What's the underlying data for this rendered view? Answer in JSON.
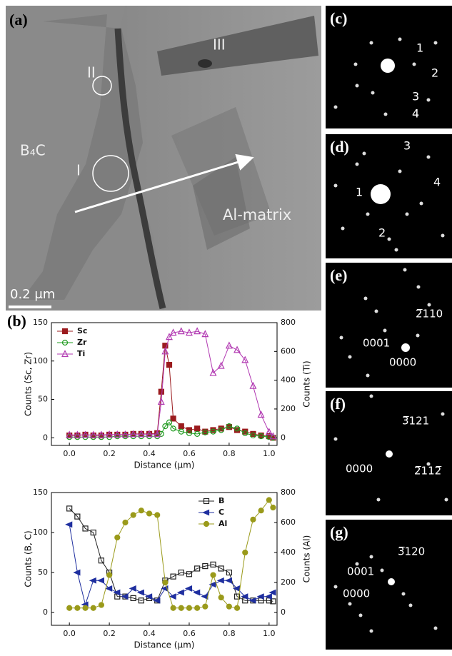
{
  "panel_a": {
    "label": "(a)",
    "regions": [
      "I",
      "II",
      "III"
    ],
    "phase_left": "B₄C",
    "phase_right": "Al-matrix",
    "scale_bar": "0.2 μm"
  },
  "panel_b_label": "(b)",
  "diffraction_panels": [
    {
      "label": "(c)",
      "spots": [
        "1",
        "2",
        "3",
        "4"
      ]
    },
    {
      "label": "(d)",
      "spots": [
        "3",
        "1",
        "4",
        "2"
      ]
    },
    {
      "label": "(e)",
      "spots": [
        "2̅110",
        "0001",
        "0000"
      ]
    },
    {
      "label": "(f)",
      "spots": [
        "3̅121",
        "0000",
        "2̅112̅"
      ]
    },
    {
      "label": "(g)",
      "spots": [
        "3̅120",
        "0001",
        "0000"
      ]
    }
  ],
  "chart_data": [
    {
      "type": "line",
      "x_label": "Distance (μm)",
      "y_label": "Counts (Sc, Zr)",
      "y2_label": "Counts (Ti)",
      "x": [
        0,
        0.04,
        0.08,
        0.12,
        0.16,
        0.2,
        0.24,
        0.28,
        0.32,
        0.36,
        0.4,
        0.44,
        0.46,
        0.48,
        0.5,
        0.52,
        0.56,
        0.6,
        0.64,
        0.68,
        0.72,
        0.76,
        0.8,
        0.84,
        0.88,
        0.92,
        0.96,
        1.0,
        1.02
      ],
      "xlim": [
        -0.09,
        1.04
      ],
      "xticks": [
        {
          "value": 0,
          "label": "0.0"
        },
        0.2,
        0.4,
        0.6,
        0.8,
        {
          "value": 1,
          "label": "1.0"
        }
      ],
      "ylim": [
        -10,
        150
      ],
      "yticks": [
        0,
        50,
        100,
        150
      ],
      "y2lim": [
        -53.3,
        800
      ],
      "y2ticks": [
        0,
        200,
        400,
        600,
        800
      ],
      "legend": "upper left",
      "series": [
        {
          "name": "Sc",
          "color": "#9b1b1e",
          "marker": "square",
          "filled": true,
          "values": [
            3,
            3,
            4,
            3,
            3,
            4,
            4,
            4,
            5,
            5,
            5,
            6,
            60,
            120,
            95,
            25,
            15,
            10,
            12,
            8,
            10,
            12,
            14,
            10,
            8,
            5,
            3,
            2,
            0
          ]
        },
        {
          "name": "Zr",
          "color": "#1f9b1f",
          "marker": "circle",
          "filled": false,
          "values": [
            1,
            1,
            1,
            1,
            1,
            1,
            2,
            2,
            2,
            2,
            2,
            2,
            5,
            15,
            20,
            12,
            8,
            6,
            5,
            7,
            8,
            10,
            15,
            12,
            6,
            3,
            2,
            1,
            0
          ]
        },
        {
          "name": "Ti",
          "color": "#b23ab2",
          "marker": "triangle",
          "filled": false,
          "axis": "y2",
          "values": [
            20,
            20,
            20,
            20,
            20,
            22,
            22,
            22,
            25,
            25,
            25,
            25,
            250,
            600,
            700,
            730,
            740,
            730,
            740,
            720,
            450,
            500,
            640,
            610,
            540,
            360,
            160,
            40,
            10
          ]
        }
      ]
    },
    {
      "type": "line",
      "x_label": "Distance (μm)",
      "y_label": "Counts (B, C)",
      "y2_label": "Counts (Al)",
      "x": [
        0,
        0.04,
        0.08,
        0.12,
        0.16,
        0.2,
        0.24,
        0.28,
        0.32,
        0.36,
        0.4,
        0.44,
        0.48,
        0.52,
        0.56,
        0.6,
        0.64,
        0.68,
        0.72,
        0.76,
        0.8,
        0.84,
        0.88,
        0.92,
        0.96,
        1.0,
        1.02
      ],
      "xlim": [
        -0.09,
        1.04
      ],
      "xticks": [
        {
          "value": 0,
          "label": "0.0"
        },
        0.2,
        0.4,
        0.6,
        0.8,
        {
          "value": 1,
          "label": "1.0"
        }
      ],
      "ylim": [
        -16,
        150
      ],
      "yticks": [
        0,
        50,
        100,
        150
      ],
      "y2lim": [
        -85.3,
        800
      ],
      "y2ticks": [
        0,
        200,
        400,
        600,
        800
      ],
      "legend": "upper right",
      "series": [
        {
          "name": "B",
          "color": "#222222",
          "marker": "square",
          "filled": false,
          "values": [
            130,
            120,
            105,
            100,
            65,
            50,
            20,
            20,
            18,
            15,
            18,
            15,
            40,
            45,
            50,
            48,
            55,
            58,
            60,
            55,
            50,
            20,
            15,
            15,
            15,
            15,
            14
          ]
        },
        {
          "name": "C",
          "color": "#1f2f9f",
          "marker": "triangle-left",
          "filled": true,
          "values": [
            110,
            50,
            10,
            40,
            40,
            30,
            25,
            20,
            30,
            25,
            20,
            15,
            30,
            20,
            25,
            30,
            25,
            20,
            35,
            40,
            40,
            30,
            20,
            15,
            20,
            20,
            25
          ]
        },
        {
          "name": "Al",
          "color": "#9a9a1a",
          "marker": "circle",
          "filled": true,
          "axis": "y2",
          "values": [
            30,
            30,
            30,
            30,
            50,
            250,
            500,
            600,
            650,
            680,
            660,
            650,
            200,
            30,
            30,
            30,
            30,
            40,
            250,
            100,
            40,
            30,
            400,
            620,
            680,
            750,
            700
          ]
        }
      ]
    }
  ]
}
